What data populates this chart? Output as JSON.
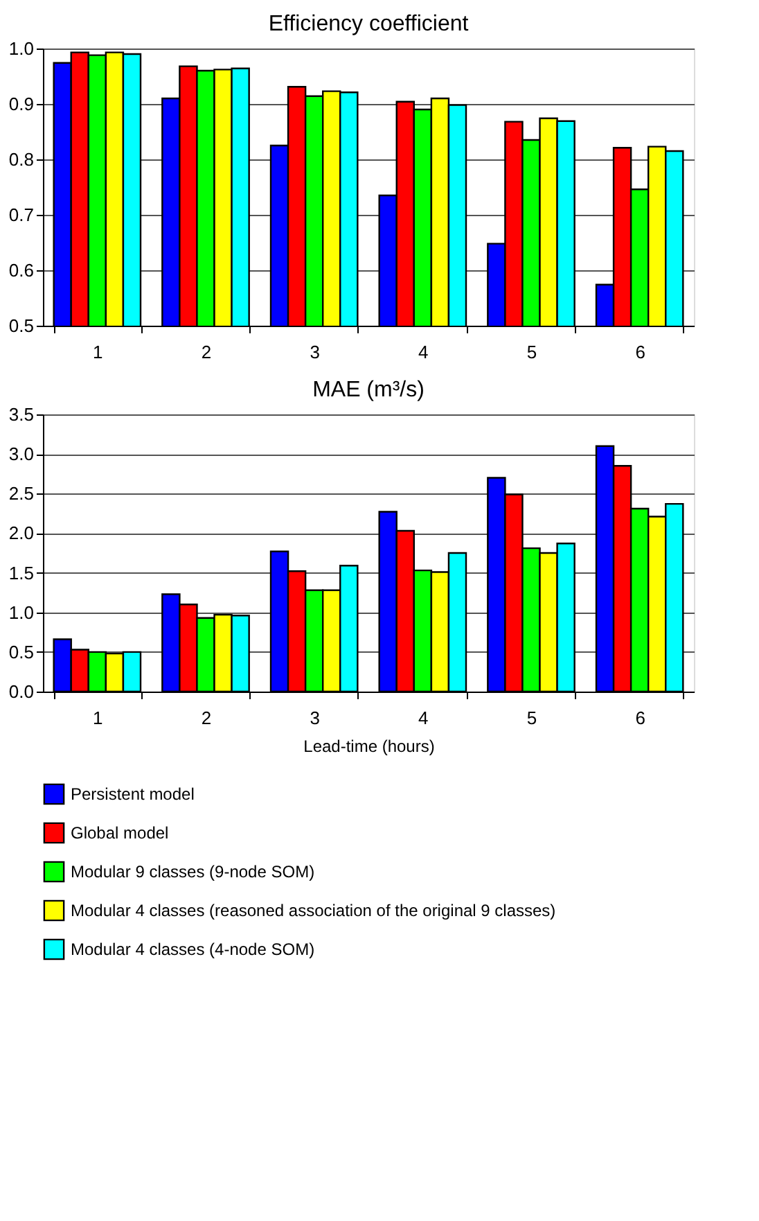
{
  "chart_data": [
    {
      "type": "bar",
      "title": "Efficiency coefficient",
      "categories": [
        "1",
        "2",
        "3",
        "4",
        "5",
        "6"
      ],
      "ylim": [
        0.5,
        1.0
      ],
      "yticks": [
        0.5,
        0.6,
        0.7,
        0.8,
        0.9,
        {
          "value": 1.0,
          "label": "1.0"
        }
      ],
      "grid": "y",
      "legend": "bottom",
      "series": [
        {
          "name": "Persistent model",
          "color": "#0000ff",
          "values": [
            0.974,
            0.91,
            0.825,
            0.735,
            0.648,
            0.574
          ]
        },
        {
          "name": "Global model",
          "color": "#ff0000",
          "values": [
            0.993,
            0.968,
            0.931,
            0.904,
            0.868,
            0.821
          ]
        },
        {
          "name": "Modular 9 classes (9-node SOM)",
          "color": "#00ff00",
          "values": [
            0.988,
            0.96,
            0.914,
            0.89,
            0.835,
            0.746
          ]
        },
        {
          "name": "Modular 4 classes (reasoned association of the original 9 classes)",
          "color": "#ffff00",
          "values": [
            0.993,
            0.962,
            0.923,
            0.91,
            0.874,
            0.823
          ]
        },
        {
          "name": "Modular 4 classes (4-node SOM)",
          "color": "#00ffff",
          "values": [
            0.99,
            0.964,
            0.921,
            0.898,
            0.869,
            0.815
          ]
        }
      ]
    },
    {
      "type": "bar",
      "title": "MAE (m³/s)",
      "xlabel": "Lead-time (hours)",
      "categories": [
        "1",
        "2",
        "3",
        "4",
        "5",
        "6"
      ],
      "ylim": [
        0.0,
        3.5
      ],
      "yticks": [
        {
          "value": 0.0,
          "label": "0.0"
        },
        0.5,
        {
          "value": 1.0,
          "label": "1.0"
        },
        1.5,
        {
          "value": 2.0,
          "label": "2.0"
        },
        2.5,
        {
          "value": 3.0,
          "label": "3.0"
        },
        3.5
      ],
      "grid": "y",
      "legend": "bottom",
      "series": [
        {
          "name": "Persistent model",
          "color": "#0000ff",
          "values": [
            0.66,
            1.23,
            1.77,
            2.27,
            2.7,
            3.1
          ]
        },
        {
          "name": "Global model",
          "color": "#ff0000",
          "values": [
            0.53,
            1.1,
            1.52,
            2.03,
            2.49,
            2.85
          ]
        },
        {
          "name": "Modular 9 classes (9-node SOM)",
          "color": "#00ff00",
          "values": [
            0.5,
            0.93,
            1.28,
            1.53,
            1.81,
            2.31
          ]
        },
        {
          "name": "Modular 4 classes (reasoned association of the original 9 classes)",
          "color": "#ffff00",
          "values": [
            0.48,
            0.97,
            1.28,
            1.51,
            1.75,
            2.21
          ]
        },
        {
          "name": "Modular 4 classes (4-node SOM)",
          "color": "#00ffff",
          "values": [
            0.5,
            0.96,
            1.59,
            1.75,
            1.87,
            2.37
          ]
        }
      ]
    }
  ]
}
